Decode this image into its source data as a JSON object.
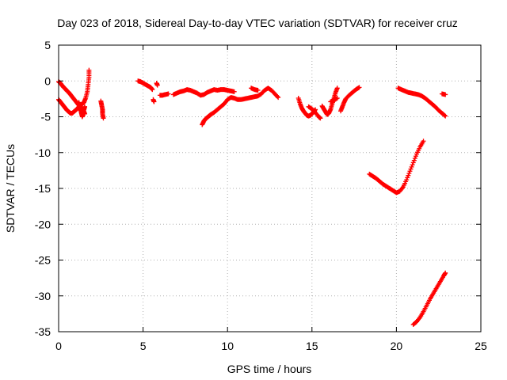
{
  "chart_data": {
    "type": "scatter",
    "title": "Day 023 of 2018, Sidereal Day-to-day VTEC variation (SDTVAR) for receiver cruz",
    "xlabel": "GPS time / hours",
    "ylabel": "SDTVAR / TECUs",
    "xlim": [
      0,
      25
    ],
    "ylim": [
      -35,
      5
    ],
    "xticks": [
      "0",
      "5",
      "10",
      "15",
      "20",
      "25"
    ],
    "yticks": [
      "5",
      "0",
      "-5",
      "-10",
      "-15",
      "-20",
      "-25",
      "-30",
      "-35"
    ],
    "grid": true,
    "marker": "+",
    "color": "#ff0000",
    "segments": [
      [
        [
          0.0,
          -0.1
        ],
        [
          0.1,
          -0.3
        ],
        [
          0.2,
          -0.6
        ],
        [
          0.3,
          -0.9
        ],
        [
          0.4,
          -1.1
        ],
        [
          0.5,
          -1.4
        ],
        [
          0.6,
          -1.6
        ],
        [
          0.7,
          -1.9
        ],
        [
          0.8,
          -2.2
        ],
        [
          0.9,
          -2.5
        ],
        [
          1.0,
          -2.8
        ],
        [
          1.1,
          -3.1
        ],
        [
          1.2,
          -3.4
        ],
        [
          1.3,
          -3.7
        ],
        [
          1.4,
          -4.0
        ],
        [
          1.5,
          -4.3
        ],
        [
          1.55,
          -4.6
        ]
      ],
      [
        [
          0.0,
          -2.6
        ],
        [
          0.1,
          -2.9
        ],
        [
          0.2,
          -3.2
        ],
        [
          0.3,
          -3.5
        ],
        [
          0.4,
          -3.8
        ],
        [
          0.5,
          -4.1
        ],
        [
          0.6,
          -4.3
        ],
        [
          0.7,
          -4.5
        ],
        [
          0.8,
          -4.5
        ],
        [
          0.9,
          -4.3
        ],
        [
          1.0,
          -4.1
        ],
        [
          1.1,
          -3.9
        ],
        [
          1.2,
          -3.6
        ],
        [
          1.3,
          -3.4
        ],
        [
          1.4,
          -3.2
        ],
        [
          1.5,
          -3.0
        ],
        [
          1.6,
          -2.4
        ],
        [
          1.7,
          -1.5
        ],
        [
          1.75,
          -0.5
        ],
        [
          1.8,
          0.5
        ],
        [
          1.8,
          1.5
        ]
      ],
      [
        [
          1.2,
          -3.0
        ],
        [
          1.25,
          -3.5
        ],
        [
          1.3,
          -4.0
        ],
        [
          1.35,
          -4.5
        ],
        [
          1.4,
          -5.0
        ],
        [
          1.45,
          -4.6
        ],
        [
          1.5,
          -4.0
        ],
        [
          1.55,
          -3.6
        ]
      ],
      [
        [
          2.5,
          -2.8
        ],
        [
          2.55,
          -3.4
        ],
        [
          2.6,
          -4.0
        ],
        [
          2.6,
          -4.6
        ],
        [
          2.65,
          -5.2
        ]
      ],
      [
        [
          4.7,
          0.0
        ],
        [
          4.85,
          -0.1
        ],
        [
          5.0,
          -0.3
        ],
        [
          5.15,
          -0.5
        ],
        [
          5.3,
          -0.7
        ],
        [
          5.45,
          -0.9
        ],
        [
          5.55,
          -1.2
        ]
      ],
      [
        [
          5.6,
          -2.6
        ],
        [
          5.65,
          -2.9
        ]
      ],
      [
        [
          5.8,
          -0.3
        ],
        [
          5.85,
          -0.6
        ]
      ],
      [
        [
          6.0,
          -2.0
        ],
        [
          6.15,
          -2.0
        ],
        [
          6.3,
          -1.9
        ],
        [
          6.5,
          -1.8
        ]
      ],
      [
        [
          6.8,
          -1.9
        ],
        [
          7.0,
          -1.7
        ],
        [
          7.2,
          -1.5
        ],
        [
          7.4,
          -1.4
        ],
        [
          7.6,
          -1.2
        ],
        [
          7.8,
          -1.3
        ],
        [
          8.0,
          -1.5
        ],
        [
          8.2,
          -1.7
        ],
        [
          8.4,
          -2.0
        ],
        [
          8.6,
          -1.9
        ],
        [
          8.8,
          -1.6
        ],
        [
          9.0,
          -1.4
        ],
        [
          9.2,
          -1.2
        ],
        [
          9.4,
          -1.3
        ],
        [
          9.6,
          -1.2
        ],
        [
          9.8,
          -1.2
        ],
        [
          10.0,
          -1.3
        ],
        [
          10.2,
          -1.4
        ],
        [
          10.4,
          -1.5
        ]
      ],
      [
        [
          8.5,
          -6.1
        ],
        [
          8.6,
          -5.6
        ],
        [
          8.7,
          -5.3
        ],
        [
          8.8,
          -5.1
        ],
        [
          8.9,
          -4.9
        ],
        [
          9.0,
          -4.7
        ],
        [
          9.2,
          -4.4
        ],
        [
          9.4,
          -4.0
        ],
        [
          9.6,
          -3.6
        ],
        [
          9.8,
          -3.2
        ],
        [
          10.0,
          -2.6
        ],
        [
          10.2,
          -2.3
        ],
        [
          10.4,
          -2.4
        ],
        [
          10.6,
          -2.6
        ],
        [
          10.8,
          -2.6
        ],
        [
          11.0,
          -2.5
        ],
        [
          11.2,
          -2.4
        ],
        [
          11.4,
          -2.3
        ],
        [
          11.6,
          -2.2
        ],
        [
          11.8,
          -2.1
        ],
        [
          12.0,
          -1.8
        ],
        [
          12.2,
          -1.3
        ],
        [
          12.4,
          -1.0
        ],
        [
          12.6,
          -1.3
        ],
        [
          12.8,
          -1.8
        ],
        [
          13.0,
          -2.3
        ]
      ],
      [
        [
          11.4,
          -1.0
        ],
        [
          11.6,
          -1.2
        ],
        [
          11.8,
          -1.3
        ]
      ],
      [
        [
          14.2,
          -2.4
        ],
        [
          14.3,
          -3.2
        ],
        [
          14.4,
          -3.8
        ],
        [
          14.5,
          -4.2
        ],
        [
          14.6,
          -4.5
        ],
        [
          14.7,
          -4.8
        ],
        [
          14.8,
          -4.9
        ],
        [
          14.9,
          -4.8
        ],
        [
          15.0,
          -4.6
        ],
        [
          15.1,
          -4.3
        ],
        [
          15.2,
          -4.0
        ]
      ],
      [
        [
          14.8,
          -3.6
        ],
        [
          15.0,
          -3.9
        ],
        [
          15.2,
          -4.4
        ],
        [
          15.4,
          -5.0
        ],
        [
          15.5,
          -5.2
        ]
      ],
      [
        [
          15.6,
          -3.5
        ],
        [
          15.7,
          -3.9
        ],
        [
          15.8,
          -4.3
        ],
        [
          15.9,
          -4.7
        ],
        [
          16.0,
          -4.5
        ],
        [
          16.1,
          -4.0
        ],
        [
          16.2,
          -3.2
        ],
        [
          16.3,
          -2.4
        ],
        [
          16.4,
          -1.6
        ],
        [
          16.5,
          -1.0
        ]
      ],
      [
        [
          16.1,
          -2.9
        ],
        [
          16.3,
          -2.7
        ],
        [
          16.5,
          -2.4
        ]
      ],
      [
        [
          16.7,
          -4.2
        ],
        [
          16.8,
          -3.6
        ],
        [
          16.9,
          -3.0
        ],
        [
          17.0,
          -2.5
        ],
        [
          17.2,
          -2.0
        ],
        [
          17.4,
          -1.6
        ],
        [
          17.6,
          -1.2
        ],
        [
          17.8,
          -0.9
        ]
      ],
      [
        [
          18.4,
          -13.0
        ],
        [
          18.6,
          -13.3
        ],
        [
          18.8,
          -13.6
        ],
        [
          19.0,
          -14.0
        ],
        [
          19.2,
          -14.4
        ],
        [
          19.4,
          -14.7
        ],
        [
          19.6,
          -15.0
        ],
        [
          19.8,
          -15.3
        ],
        [
          20.0,
          -15.6
        ],
        [
          20.2,
          -15.4
        ],
        [
          20.4,
          -14.8
        ],
        [
          20.6,
          -13.8
        ],
        [
          20.8,
          -12.6
        ],
        [
          21.0,
          -11.4
        ],
        [
          21.2,
          -10.2
        ],
        [
          21.4,
          -9.2
        ],
        [
          21.6,
          -8.4
        ]
      ],
      [
        [
          20.1,
          -1.0
        ],
        [
          20.3,
          -1.2
        ],
        [
          20.5,
          -1.4
        ],
        [
          20.7,
          -1.6
        ],
        [
          20.9,
          -1.7
        ],
        [
          21.1,
          -1.8
        ],
        [
          21.3,
          -1.9
        ],
        [
          21.5,
          -2.1
        ],
        [
          21.7,
          -2.4
        ],
        [
          21.9,
          -2.8
        ],
        [
          22.1,
          -3.2
        ],
        [
          22.3,
          -3.6
        ],
        [
          22.5,
          -4.1
        ],
        [
          22.7,
          -4.5
        ],
        [
          22.9,
          -4.9
        ]
      ],
      [
        [
          22.7,
          -1.8
        ],
        [
          22.9,
          -1.9
        ]
      ],
      [
        [
          21.0,
          -34.0
        ],
        [
          21.2,
          -33.6
        ],
        [
          21.4,
          -33.0
        ],
        [
          21.6,
          -32.2
        ],
        [
          21.8,
          -31.3
        ],
        [
          22.0,
          -30.4
        ],
        [
          22.2,
          -29.6
        ],
        [
          22.4,
          -28.8
        ],
        [
          22.6,
          -28.0
        ],
        [
          22.8,
          -27.2
        ],
        [
          22.9,
          -26.8
        ]
      ]
    ]
  }
}
